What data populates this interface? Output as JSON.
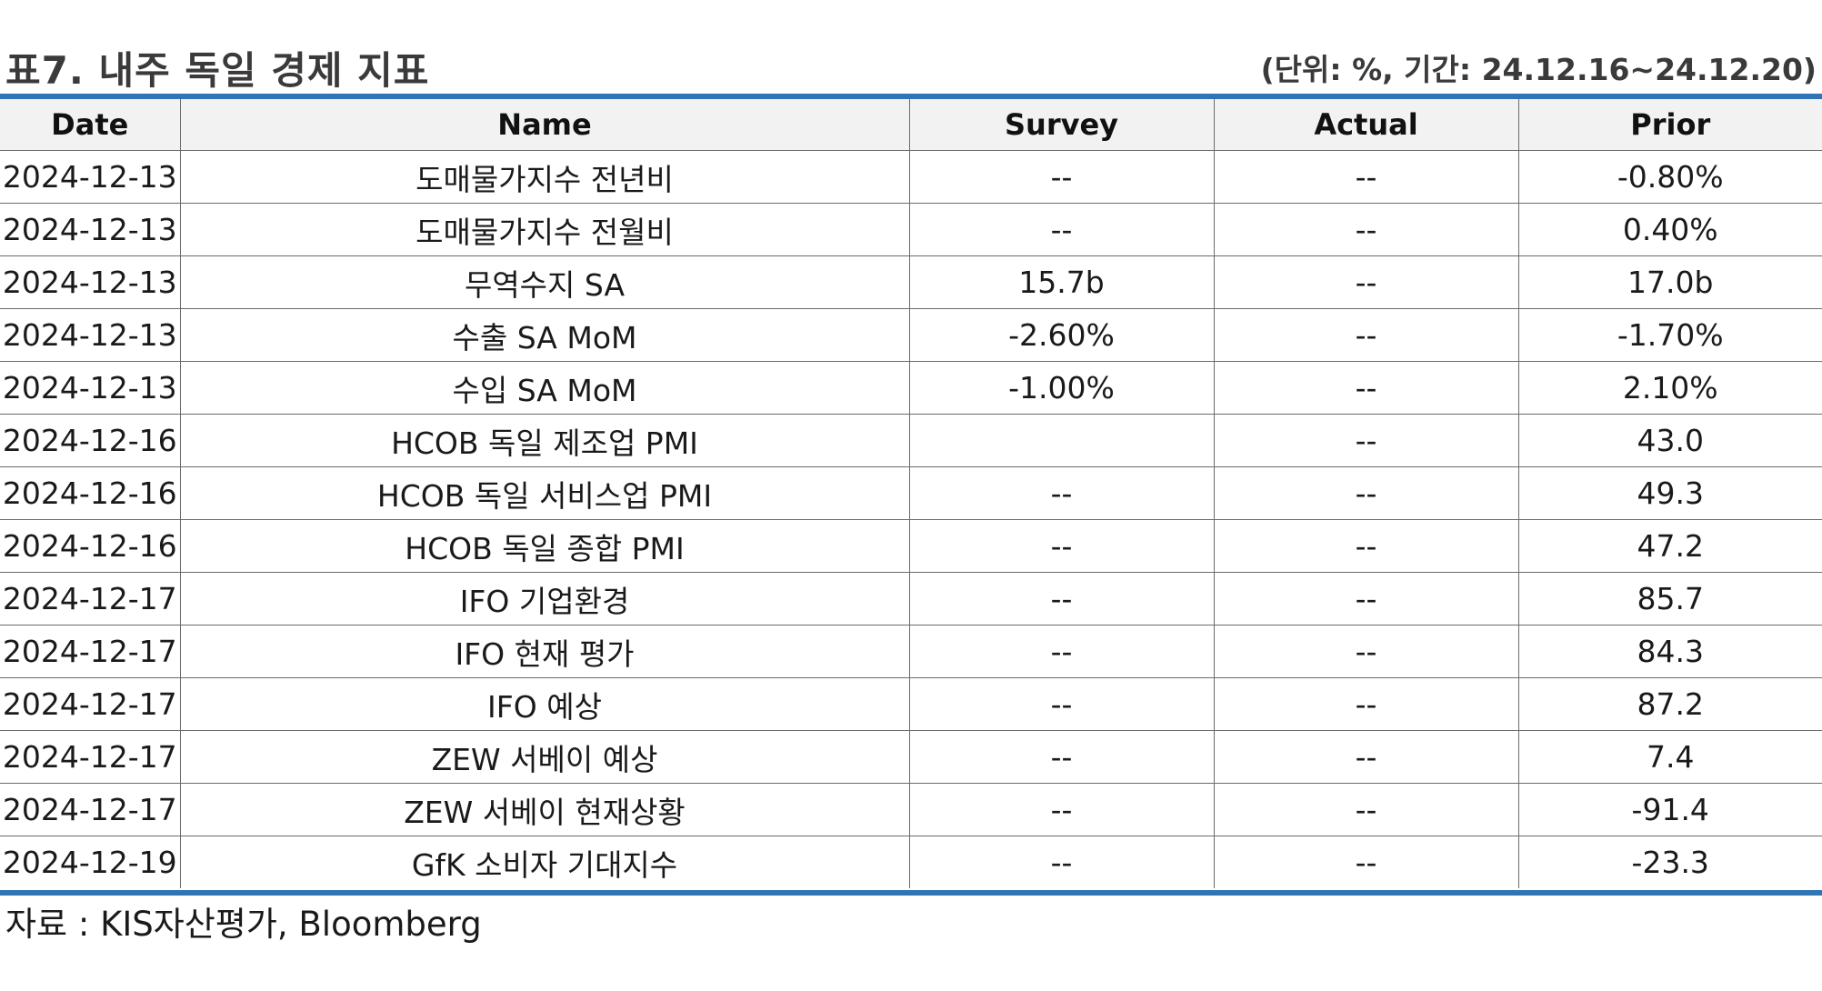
{
  "header": {
    "title": "표7. 내주 독일 경제 지표",
    "unit_note": "(단위: %, 기간: 24.12.16~24.12.20)"
  },
  "table": {
    "columns": [
      "Date",
      "Name",
      "Survey",
      "Actual",
      "Prior"
    ],
    "rows": [
      {
        "date": "2024-12-13",
        "name": "도매물가지수 전년비",
        "survey": "--",
        "actual": "--",
        "prior": "-0.80%"
      },
      {
        "date": "2024-12-13",
        "name": "도매물가지수 전월비",
        "survey": "--",
        "actual": "--",
        "prior": "0.40%"
      },
      {
        "date": "2024-12-13",
        "name": "무역수지 SA",
        "survey": "15.7b",
        "actual": "--",
        "prior": "17.0b"
      },
      {
        "date": "2024-12-13",
        "name": "수출 SA MoM",
        "survey": "-2.60%",
        "actual": "--",
        "prior": "-1.70%"
      },
      {
        "date": "2024-12-13",
        "name": "수입 SA MoM",
        "survey": "-1.00%",
        "actual": "--",
        "prior": "2.10%"
      },
      {
        "date": "2024-12-16",
        "name": "HCOB 독일 제조업 PMI",
        "survey": "",
        "actual": "--",
        "prior": "43.0"
      },
      {
        "date": "2024-12-16",
        "name": "HCOB 독일 서비스업 PMI",
        "survey": "--",
        "actual": "--",
        "prior": "49.3"
      },
      {
        "date": "2024-12-16",
        "name": "HCOB 독일 종합 PMI",
        "survey": "--",
        "actual": "--",
        "prior": "47.2"
      },
      {
        "date": "2024-12-17",
        "name": "IFO 기업환경",
        "survey": "--",
        "actual": "--",
        "prior": "85.7"
      },
      {
        "date": "2024-12-17",
        "name": "IFO 현재 평가",
        "survey": "--",
        "actual": "--",
        "prior": "84.3"
      },
      {
        "date": "2024-12-17",
        "name": "IFO 예상",
        "survey": "--",
        "actual": "--",
        "prior": "87.2"
      },
      {
        "date": "2024-12-17",
        "name": "ZEW 서베이 예상",
        "survey": "--",
        "actual": "--",
        "prior": "7.4"
      },
      {
        "date": "2024-12-17",
        "name": "ZEW 서베이 현재상황",
        "survey": "--",
        "actual": "--",
        "prior": "-91.4"
      },
      {
        "date": "2024-12-19",
        "name": "GfK 소비자 기대지수",
        "survey": "--",
        "actual": "--",
        "prior": "-23.3"
      }
    ]
  },
  "footer": {
    "source": "자료 : KIS자산평가, Bloomberg"
  },
  "colors": {
    "rule": "#2f74b5",
    "header_bg": "#f2f2f2",
    "grid": "#6b6b6b"
  }
}
